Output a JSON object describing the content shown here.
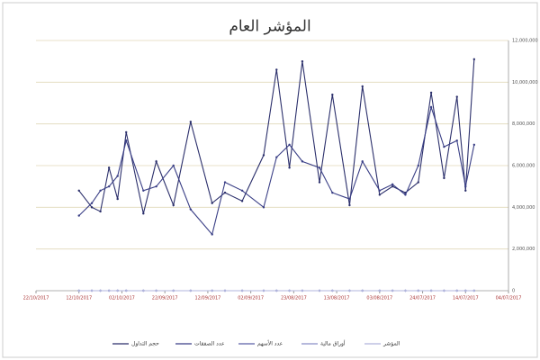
{
  "chart_data": {
    "type": "line",
    "title": "المؤشر العام",
    "x": [
      1.0,
      1.3,
      1.5,
      1.7,
      1.9,
      2.1,
      2.5,
      2.8,
      3.2,
      3.6,
      4.1,
      4.4,
      4.8,
      5.3,
      5.6,
      5.9,
      6.2,
      6.6,
      6.9,
      7.3,
      7.6,
      8.0,
      8.3,
      8.6,
      8.9,
      9.2,
      9.5,
      9.8,
      10.0,
      10.2
    ],
    "series": [
      {
        "name": "حجم التداول",
        "color": "#2b2f6b",
        "values": [
          4800000,
          4000000,
          3800000,
          5900000,
          4400000,
          7600000,
          3700000,
          6200000,
          4100000,
          8100000,
          4200000,
          4700000,
          4300000,
          6500000,
          10600000,
          5900000,
          11000000,
          5200000,
          9400000,
          4100000,
          9800000,
          4600000,
          5000000,
          4700000,
          5200000,
          9500000,
          5400000,
          9300000,
          4800000,
          11100000
        ]
      },
      {
        "name": "عدد الصفقات",
        "color": "#3a3f86",
        "values": [
          3600000,
          4200000,
          4800000,
          5000000,
          5500000,
          7200000,
          4800000,
          5000000,
          6000000,
          3900000,
          2700000,
          5200000,
          4800000,
          4000000,
          6400000,
          7000000,
          6200000,
          5900000,
          4700000,
          4400000,
          6200000,
          4800000,
          5100000,
          4600000,
          6000000,
          8800000,
          6900000,
          7200000,
          5000000,
          7000000
        ]
      },
      {
        "name": "عدد الأسهم",
        "color": "#5a5fa6",
        "values": [
          0,
          0,
          0,
          0,
          0,
          0,
          0,
          0,
          0,
          0,
          0,
          0,
          0,
          0,
          0,
          0,
          0,
          0,
          0,
          0,
          0,
          0,
          0,
          0,
          0,
          0,
          0,
          0,
          0,
          0
        ]
      },
      {
        "name": "أوراق مالية",
        "color": "#8a8fc6",
        "values": [
          0,
          0,
          0,
          0,
          0,
          0,
          0,
          0,
          0,
          0,
          0,
          0,
          0,
          0,
          0,
          0,
          0,
          0,
          0,
          0,
          0,
          0,
          0,
          0,
          0,
          0,
          0,
          0,
          0,
          0
        ]
      },
      {
        "name": "المؤشر",
        "color": "#b0b4dc",
        "values": [
          0,
          0,
          0,
          0,
          0,
          0,
          0,
          0,
          0,
          0,
          0,
          0,
          0,
          0,
          0,
          0,
          0,
          0,
          0,
          0,
          0,
          0,
          0,
          0,
          0,
          0,
          0,
          0,
          0,
          0
        ]
      }
    ],
    "xlim": [
      0,
      11
    ],
    "xticks": [
      {
        "value": 0,
        "label": "22/10/2017"
      },
      {
        "value": 1,
        "label": "12/10/2017"
      },
      {
        "value": 2,
        "label": "02/10/2017"
      },
      {
        "value": 3,
        "label": "22/09/2017"
      },
      {
        "value": 4,
        "label": "12/09/2017"
      },
      {
        "value": 5,
        "label": "02/09/2017"
      },
      {
        "value": 6,
        "label": "23/08/2017"
      },
      {
        "value": 7,
        "label": "13/08/2017"
      },
      {
        "value": 8,
        "label": "03/08/2017"
      },
      {
        "value": 9,
        "label": "24/07/2017"
      },
      {
        "value": 10,
        "label": "14/07/2017"
      },
      {
        "value": 11,
        "label": "04/07/2017"
      }
    ],
    "ylim": [
      0,
      12000000
    ],
    "yticks": [
      0,
      {
        "value": 2000000,
        "label": "2,000,000"
      },
      {
        "value": 4000000,
        "label": "4,000,000"
      },
      {
        "value": 6000000,
        "label": "6,000,000"
      },
      {
        "value": 8000000,
        "label": "8,000,000"
      },
      {
        "value": 10000000,
        "label": "10,000,000"
      },
      {
        "value": 12000000,
        "label": "12,000,000"
      }
    ],
    "grid": true
  }
}
